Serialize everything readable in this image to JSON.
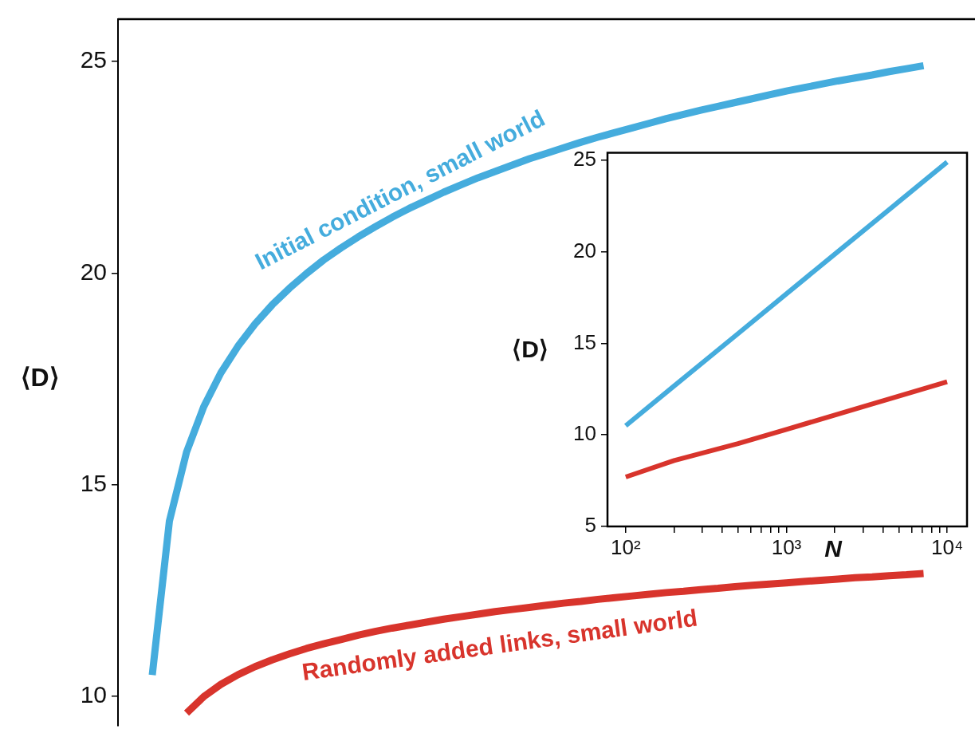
{
  "chart_data": [
    {
      "type": "line",
      "ylabel": "⟨D⟩",
      "categories": [
        null,
        null,
        null,
        null,
        null,
        null,
        null,
        null,
        null,
        null,
        null,
        null,
        null,
        null,
        null,
        null,
        null,
        null,
        null,
        null,
        null,
        null,
        null,
        null,
        null,
        null,
        null,
        null,
        null,
        null,
        null,
        null,
        null,
        null,
        null,
        null,
        null,
        null,
        null,
        null,
        null,
        null,
        null,
        null,
        null,
        null,
        null,
        null,
        null,
        null,
        null
      ],
      "series": [
        {
          "name": "Initial condition, small world",
          "color": "#45acdd",
          "values": [
            null,
            null,
            10.5,
            14.14,
            15.77,
            16.84,
            17.64,
            18.27,
            18.8,
            19.25,
            19.64,
            19.99,
            20.31,
            20.59,
            20.85,
            21.09,
            21.32,
            21.53,
            21.72,
            21.91,
            22.08,
            22.25,
            22.4,
            22.55,
            22.7,
            22.83,
            22.96,
            23.09,
            23.21,
            23.32,
            23.43,
            23.54,
            23.65,
            23.75,
            23.85,
            23.94,
            24.03,
            24.12,
            24.21,
            24.3,
            24.38,
            24.46,
            24.54,
            24.61,
            24.68,
            24.76,
            24.83,
            24.9,
            null,
            null,
            null
          ]
        },
        {
          "name": "Randomly added links, small world",
          "color": "#d8342c",
          "values": [
            null,
            null,
            null,
            null,
            9.6,
            9.99,
            10.28,
            10.51,
            10.7,
            10.86,
            11.0,
            11.13,
            11.24,
            11.34,
            11.44,
            11.53,
            11.61,
            11.68,
            11.75,
            11.82,
            11.88,
            11.94,
            12.0,
            12.05,
            12.1,
            12.15,
            12.2,
            12.24,
            12.29,
            12.33,
            12.37,
            12.41,
            12.45,
            12.48,
            12.52,
            12.55,
            12.59,
            12.62,
            12.65,
            12.68,
            12.71,
            12.74,
            12.77,
            12.8,
            12.82,
            12.85,
            12.87,
            12.9,
            null,
            null,
            null
          ]
        }
      ],
      "ylim": [
        9.3,
        26
      ],
      "yticks": [
        10,
        15,
        20,
        25
      ],
      "tick_labels": "y",
      "grid": false,
      "marker": "none"
    },
    {
      "type": "line",
      "xlabel": "N",
      "ylabel": "⟨D⟩",
      "x": [
        100,
        200,
        500,
        1000,
        2000,
        5000,
        10000
      ],
      "series": [
        {
          "color": "#45acdd",
          "values": [
            10.5,
            12.67,
            15.53,
            17.7,
            19.87,
            22.73,
            24.9
          ]
        },
        {
          "color": "#d8342c",
          "values": [
            7.7,
            8.6,
            9.52,
            10.3,
            11.08,
            12.12,
            12.9
          ]
        }
      ],
      "log": "x",
      "xlim": [
        77,
        13300
      ],
      "xticks": [
        {
          "value": 100,
          "label": "10²"
        },
        {
          "value": 200,
          "label": null
        },
        {
          "value": 300,
          "label": null
        },
        {
          "value": 400,
          "label": null
        },
        {
          "value": 500,
          "label": null
        },
        {
          "value": 600,
          "label": null
        },
        {
          "value": 700,
          "label": null
        },
        {
          "value": 800,
          "label": null
        },
        {
          "value": 900,
          "label": null
        },
        {
          "value": 1000,
          "label": "10³"
        },
        {
          "value": 2000,
          "label": null
        },
        {
          "value": 3000,
          "label": null
        },
        {
          "value": 4000,
          "label": null
        },
        {
          "value": 5000,
          "label": null
        },
        {
          "value": 6000,
          "label": null
        },
        {
          "value": 7000,
          "label": null
        },
        {
          "value": 8000,
          "label": null
        },
        {
          "value": 9000,
          "label": null
        },
        {
          "value": 10000,
          "label": "10⁴"
        }
      ],
      "ylim": [
        5,
        25.4
      ],
      "yticks": [
        5,
        10,
        15,
        20,
        25
      ],
      "grid": false,
      "marker": "none"
    }
  ]
}
